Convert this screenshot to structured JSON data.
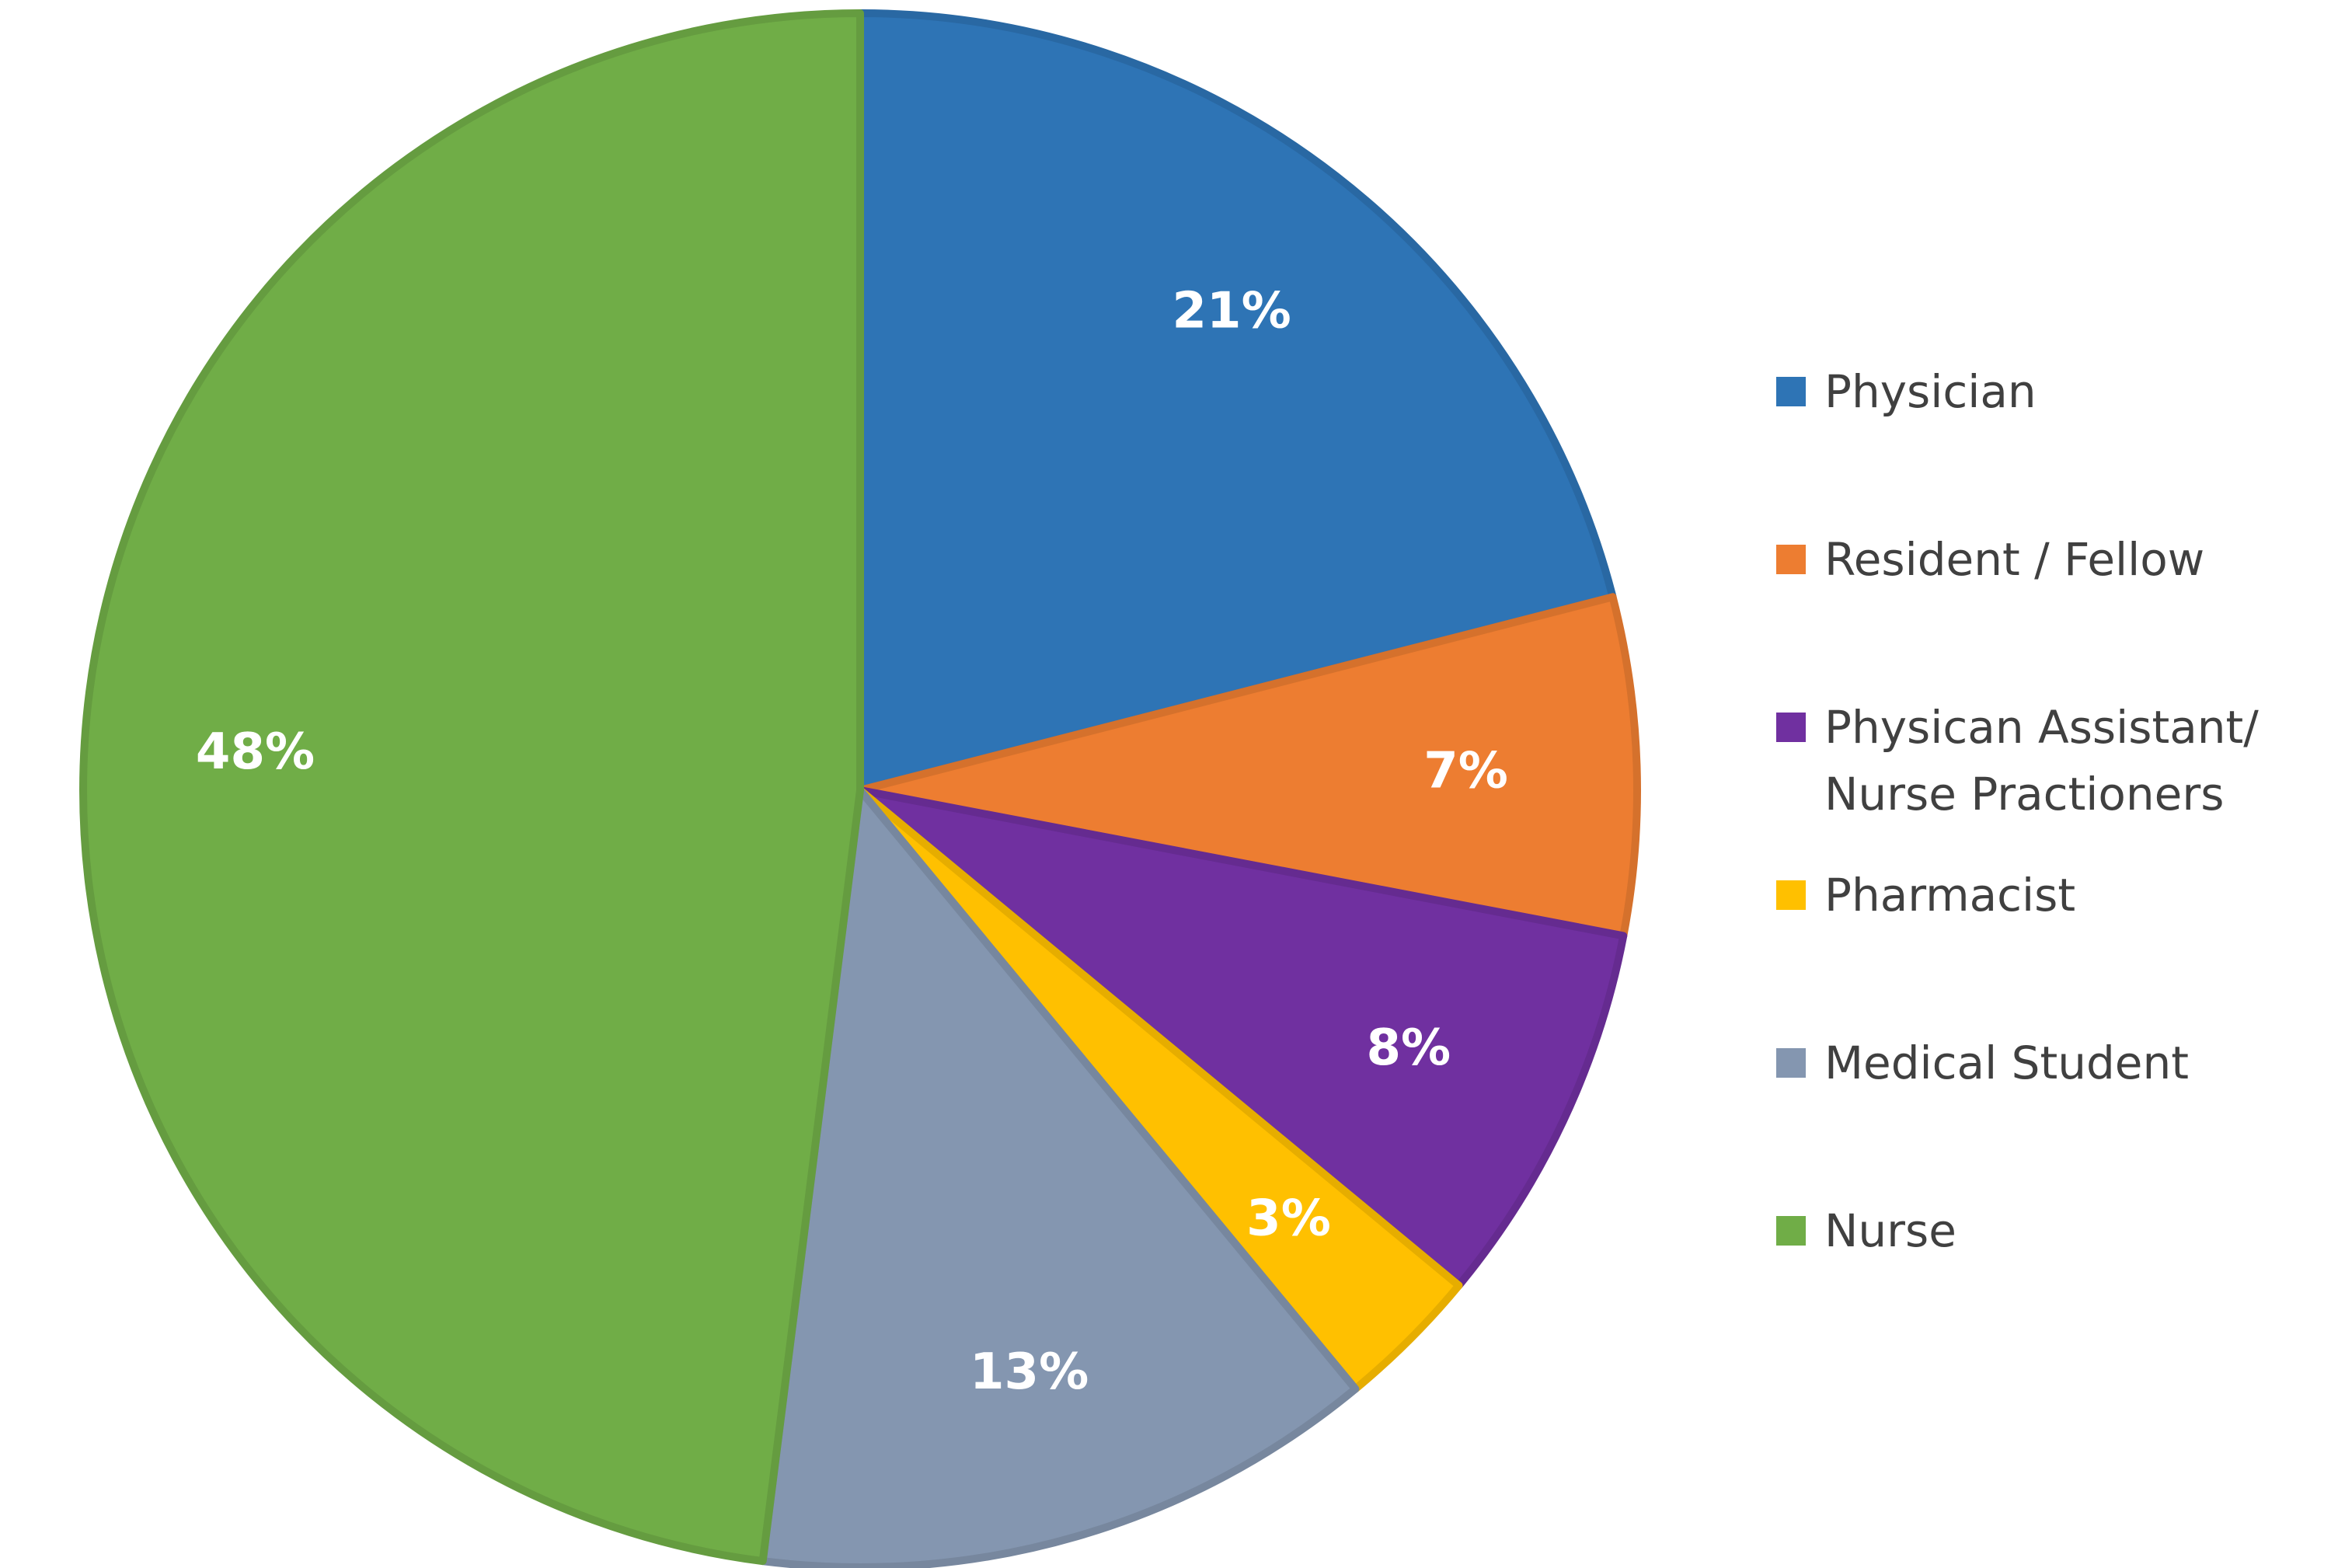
{
  "chart_data": {
    "type": "pie",
    "title": "",
    "legend_position": "right",
    "labels_inside": true,
    "slices": [
      {
        "name": "Physician",
        "value": 21,
        "label": "21%",
        "color": "#2e74b5"
      },
      {
        "name": "Resident / Fellow",
        "value": 7,
        "label": "7%",
        "color": "#ed7d31"
      },
      {
        "name": "Physican Assistant/ Nurse Practioners",
        "legend_lines": [
          "Physican Assistant/",
          "Nurse Practioners"
        ],
        "value": 8,
        "label": "8%",
        "color": "#7030a0"
      },
      {
        "name": "Pharmacist",
        "value": 3,
        "label": "3%",
        "color": "#ffc000"
      },
      {
        "name": "Medical Student",
        "value": 13,
        "label": "13%",
        "color": "#8496b0"
      },
      {
        "name": "Nurse",
        "value": 48,
        "label": "48%",
        "color": "#70ad47"
      }
    ]
  }
}
